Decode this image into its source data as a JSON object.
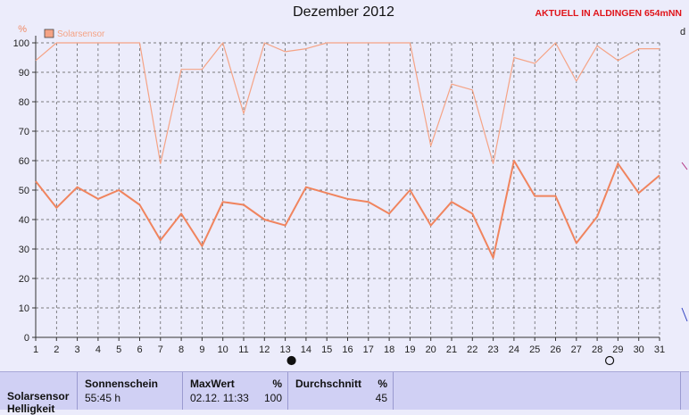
{
  "header": {
    "title": "Dezember 2012",
    "station": "AKTUELL IN ALDINGEN 654mNN",
    "right_edge_char": "d"
  },
  "chart_data": {
    "type": "line",
    "ylabel": "%",
    "ylim": [
      0,
      100
    ],
    "yticks": [
      0,
      10,
      20,
      30,
      40,
      50,
      60,
      70,
      80,
      90,
      100
    ],
    "x": [
      1,
      2,
      3,
      4,
      5,
      6,
      7,
      8,
      9,
      10,
      11,
      12,
      13,
      14,
      15,
      16,
      17,
      18,
      19,
      20,
      21,
      22,
      23,
      24,
      25,
      26,
      27,
      28,
      29,
      30,
      31
    ],
    "legend": "Solarsensor",
    "grid": true,
    "moon_markers": [
      {
        "day": 13.3,
        "phase": "new-moon"
      },
      {
        "day": 28.6,
        "phase": "full-moon"
      }
    ],
    "series": [
      {
        "name": "Solarsensor",
        "role": "max",
        "color": "#f5a385",
        "values": [
          94,
          100,
          100,
          100,
          100,
          100,
          59,
          91,
          91,
          100,
          76,
          100,
          97,
          98,
          100,
          100,
          100,
          100,
          100,
          65,
          86,
          84,
          59,
          95,
          93,
          100,
          87,
          99,
          94,
          98,
          98
        ]
      },
      {
        "name": "Solarsensor",
        "role": "avg",
        "color": "#f0845e",
        "values": [
          53,
          44,
          51,
          47,
          50,
          45,
          33,
          42,
          31,
          46,
          45,
          40,
          38,
          51,
          49,
          47,
          46,
          42,
          50,
          38,
          46,
          42,
          27,
          60,
          48,
          48,
          32,
          41,
          59,
          49,
          55
        ]
      }
    ]
  },
  "stats": {
    "row_label": "Solarsensor",
    "row_label_2": "Helligkeit",
    "sunshine_label": "Sonnenschein",
    "sunshine_value": "55:45 h",
    "max_label": "MaxWert",
    "max_unit": "%",
    "max_time": "02.12.  11:33",
    "max_value": "100",
    "avg_label": "Durchschnitt",
    "avg_unit": "%",
    "avg_value": "45"
  }
}
